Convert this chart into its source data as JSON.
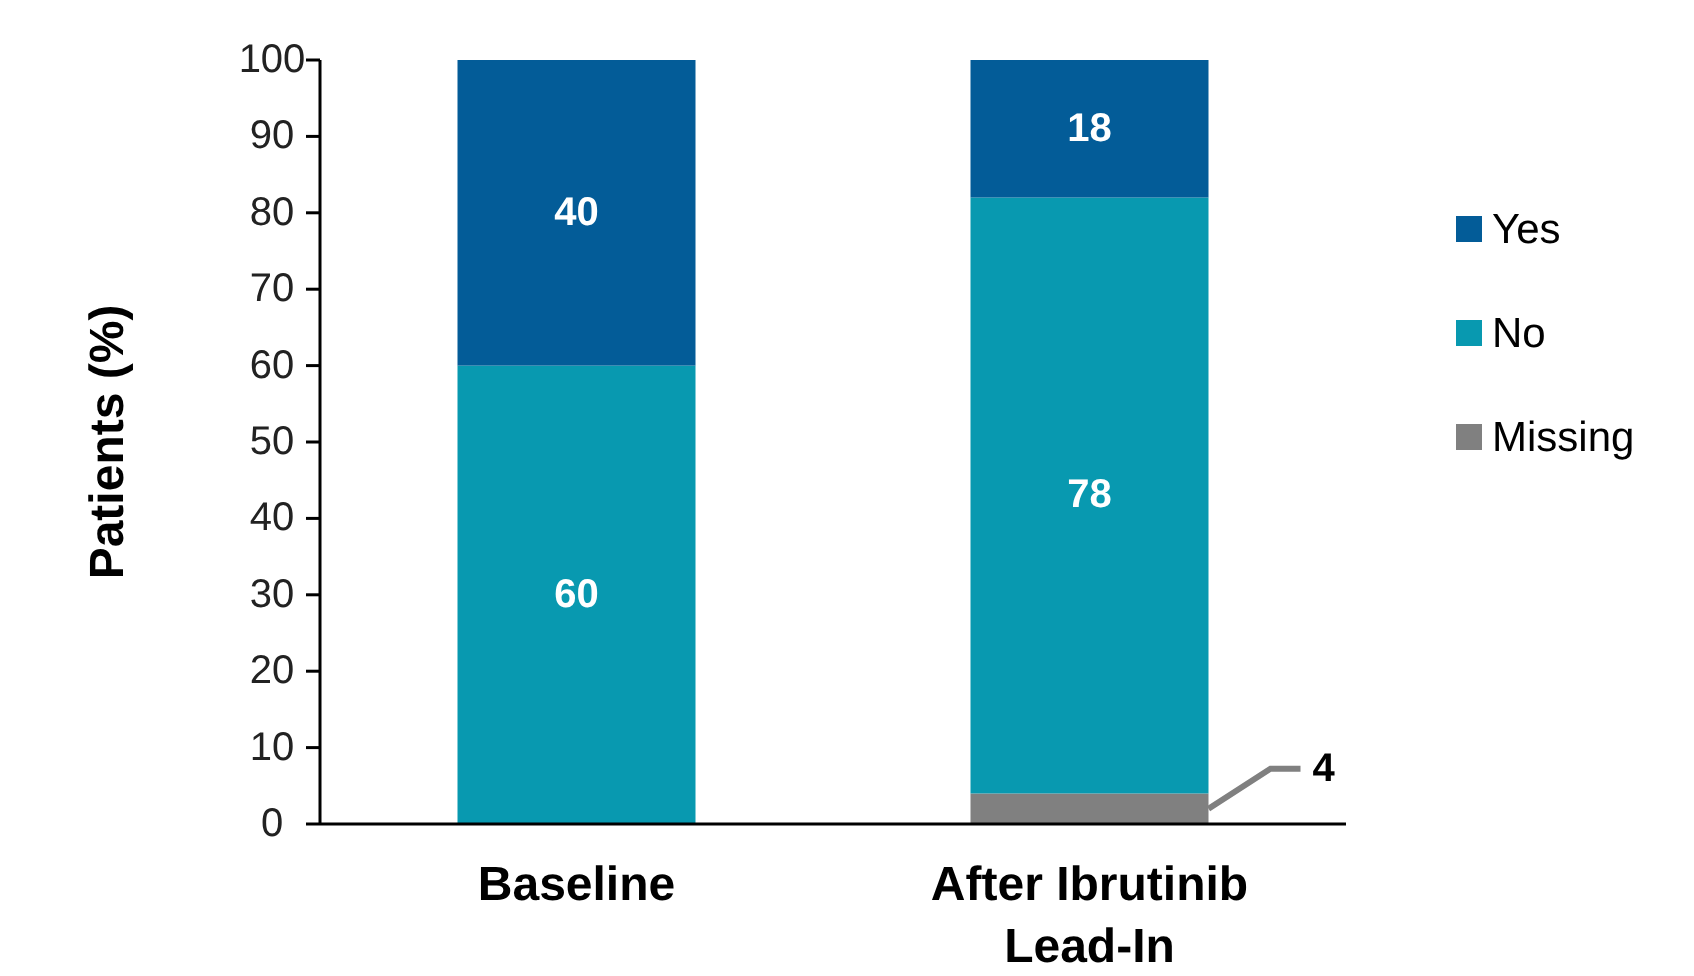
{
  "chart_data": {
    "type": "bar",
    "stacked": true,
    "ylabel": "Patients (%)",
    "categories": [
      "Baseline",
      "After Ibrutinib Lead-In"
    ],
    "ylim": [
      0,
      100
    ],
    "yticks": [
      0,
      10,
      20,
      30,
      40,
      50,
      60,
      70,
      80,
      90,
      100
    ],
    "legend": "right",
    "grid": false,
    "series": [
      {
        "name": "Missing",
        "color": "#808080",
        "values": [
          0,
          4
        ],
        "value_labels": [
          null,
          "4"
        ]
      },
      {
        "name": "No",
        "color": "#0899b0",
        "values": [
          60,
          78
        ],
        "value_labels": [
          "60",
          "78"
        ]
      },
      {
        "name": "Yes",
        "color": "#035c98",
        "values": [
          40,
          18
        ],
        "value_labels": [
          "40",
          "18"
        ]
      }
    ]
  }
}
